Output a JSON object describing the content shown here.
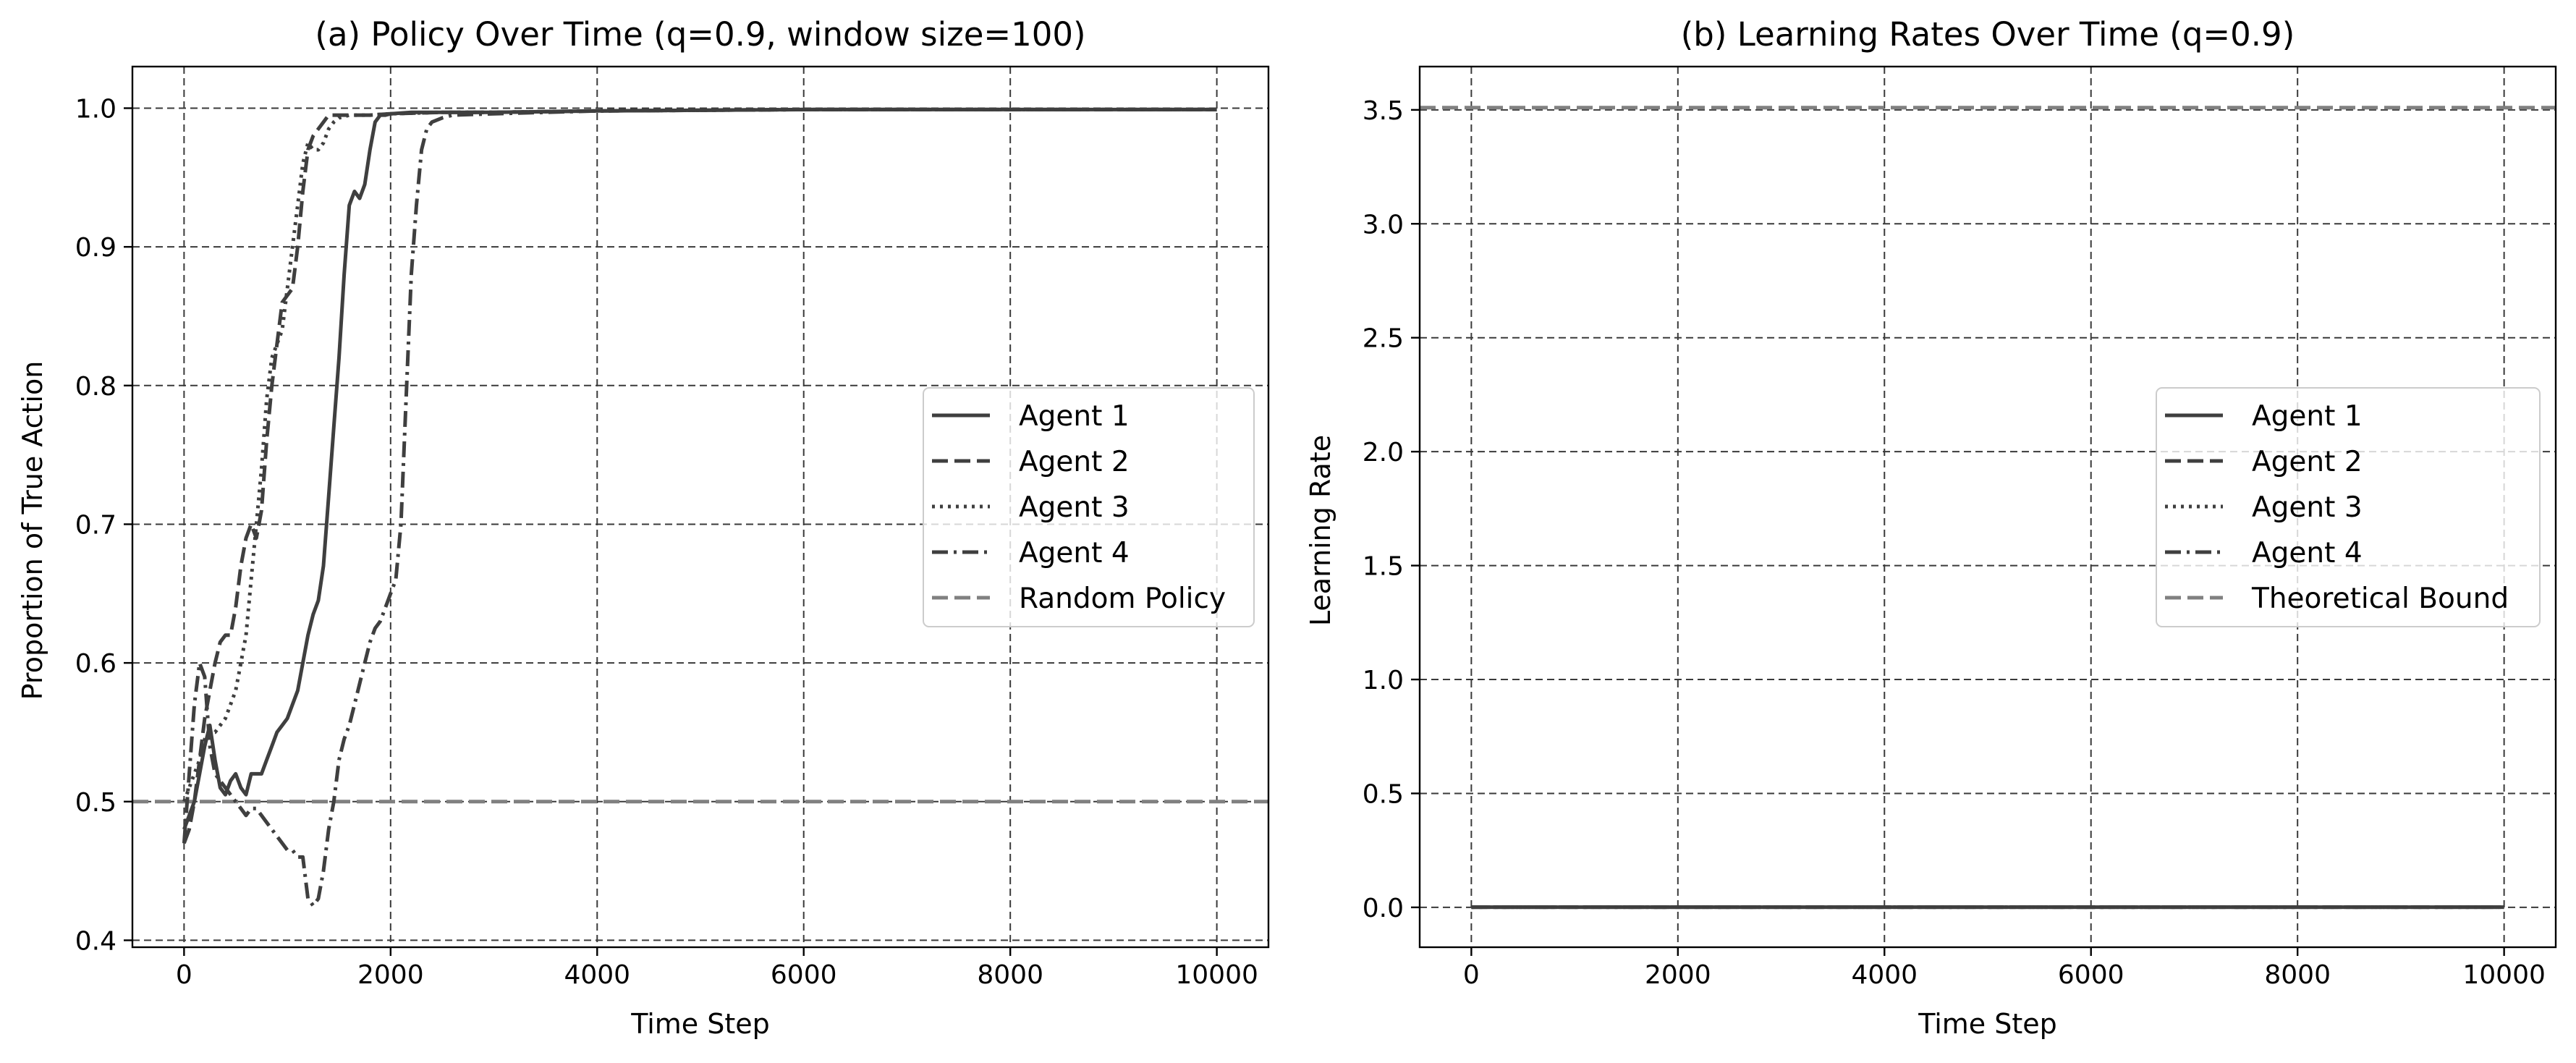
{
  "chart_data": [
    {
      "type": "line",
      "title": "(a) Policy Over Time (q=0.9, window size=100)",
      "xlabel": "Time Step",
      "ylabel": "Proportion of True Action",
      "xlim": [
        -500,
        10500
      ],
      "ylim": [
        0.395,
        1.03
      ],
      "xticks": [
        0,
        2000,
        4000,
        6000,
        8000,
        10000
      ],
      "yticks": [
        0.4,
        0.5,
        0.6,
        0.7,
        0.8,
        0.9,
        1.0
      ],
      "xtick_labels": [
        "0",
        "2000",
        "4000",
        "6000",
        "8000",
        "10000"
      ],
      "ytick_labels": [
        "0.4",
        "0.5",
        "0.6",
        "0.7",
        "0.8",
        "0.9",
        "1.0"
      ],
      "grid": true,
      "legend_position": "center-right",
      "series": [
        {
          "name": "Agent 1",
          "style": "solid",
          "color": "#3f3f3f",
          "x": [
            0,
            50,
            100,
            150,
            200,
            250,
            300,
            350,
            400,
            450,
            500,
            550,
            600,
            650,
            700,
            750,
            800,
            850,
            900,
            950,
            1000,
            1050,
            1100,
            1150,
            1200,
            1250,
            1300,
            1350,
            1400,
            1450,
            1500,
            1550,
            1600,
            1650,
            1700,
            1750,
            1800,
            1850,
            1900,
            1950,
            2000,
            2200,
            2500,
            3000,
            4000,
            6000,
            8000,
            10000
          ],
          "y": [
            0.48,
            0.49,
            0.5,
            0.52,
            0.54,
            0.555,
            0.53,
            0.51,
            0.505,
            0.515,
            0.52,
            0.51,
            0.505,
            0.52,
            0.52,
            0.52,
            0.53,
            0.54,
            0.55,
            0.555,
            0.56,
            0.57,
            0.58,
            0.6,
            0.62,
            0.635,
            0.645,
            0.67,
            0.72,
            0.77,
            0.82,
            0.88,
            0.93,
            0.94,
            0.935,
            0.945,
            0.97,
            0.99,
            0.995,
            0.995,
            0.996,
            0.997,
            0.997,
            0.997,
            0.998,
            0.999,
            0.999,
            0.999
          ]
        },
        {
          "name": "Agent 2",
          "style": "dashed",
          "color": "#3f3f3f",
          "x": [
            0,
            50,
            100,
            150,
            200,
            250,
            300,
            350,
            400,
            450,
            500,
            550,
            600,
            650,
            700,
            750,
            800,
            850,
            900,
            950,
            1000,
            1050,
            1100,
            1150,
            1200,
            1250,
            1300,
            1350,
            1400,
            1450,
            1500,
            1600,
            1800,
            2000,
            2500,
            3000,
            4000,
            6000,
            8000,
            10000
          ],
          "y": [
            0.47,
            0.48,
            0.5,
            0.53,
            0.56,
            0.58,
            0.6,
            0.615,
            0.62,
            0.62,
            0.64,
            0.67,
            0.69,
            0.7,
            0.69,
            0.71,
            0.76,
            0.8,
            0.83,
            0.86,
            0.865,
            0.87,
            0.9,
            0.94,
            0.97,
            0.98,
            0.985,
            0.99,
            0.995,
            0.995,
            0.995,
            0.995,
            0.995,
            0.996,
            0.997,
            0.997,
            0.998,
            0.999,
            0.999,
            0.999
          ]
        },
        {
          "name": "Agent 3",
          "style": "dotted",
          "color": "#3f3f3f",
          "x": [
            0,
            50,
            100,
            150,
            200,
            250,
            300,
            350,
            400,
            450,
            500,
            550,
            600,
            650,
            700,
            750,
            800,
            850,
            900,
            950,
            1000,
            1050,
            1100,
            1150,
            1200,
            1250,
            1300,
            1350,
            1400,
            1450,
            1500,
            1600,
            1800,
            2000,
            2500,
            3000,
            4000,
            6000,
            8000,
            10000
          ],
          "y": [
            0.5,
            0.51,
            0.52,
            0.53,
            0.545,
            0.55,
            0.55,
            0.555,
            0.56,
            0.57,
            0.58,
            0.6,
            0.62,
            0.66,
            0.7,
            0.74,
            0.79,
            0.82,
            0.83,
            0.84,
            0.87,
            0.9,
            0.93,
            0.96,
            0.975,
            0.97,
            0.97,
            0.975,
            0.985,
            0.99,
            0.993,
            0.995,
            0.995,
            0.996,
            0.997,
            0.997,
            0.998,
            0.999,
            0.999,
            0.999
          ]
        },
        {
          "name": "Agent 4",
          "style": "dashdot",
          "color": "#3f3f3f",
          "x": [
            0,
            50,
            100,
            150,
            200,
            250,
            300,
            350,
            400,
            450,
            500,
            550,
            600,
            650,
            700,
            750,
            800,
            850,
            900,
            950,
            1000,
            1050,
            1100,
            1150,
            1200,
            1250,
            1300,
            1350,
            1400,
            1450,
            1500,
            1550,
            1600,
            1650,
            1700,
            1750,
            1800,
            1850,
            1900,
            1950,
            2000,
            2050,
            2100,
            2150,
            2200,
            2250,
            2300,
            2350,
            2400,
            2500,
            2600,
            3000,
            4000,
            6000,
            8000,
            10000
          ],
          "y": [
            0.47,
            0.52,
            0.57,
            0.6,
            0.59,
            0.54,
            0.52,
            0.515,
            0.51,
            0.505,
            0.5,
            0.495,
            0.49,
            0.495,
            0.495,
            0.49,
            0.485,
            0.48,
            0.475,
            0.47,
            0.465,
            0.465,
            0.46,
            0.46,
            0.43,
            0.425,
            0.43,
            0.45,
            0.48,
            0.5,
            0.53,
            0.545,
            0.555,
            0.57,
            0.585,
            0.6,
            0.615,
            0.625,
            0.63,
            0.64,
            0.65,
            0.66,
            0.7,
            0.79,
            0.88,
            0.93,
            0.97,
            0.985,
            0.99,
            0.993,
            0.995,
            0.996,
            0.998,
            0.999,
            0.999,
            0.999
          ]
        },
        {
          "name": "Random Policy",
          "style": "dashed",
          "color": "#808080",
          "x": [
            -500,
            10500
          ],
          "y": [
            0.5,
            0.5
          ]
        }
      ]
    },
    {
      "type": "line",
      "title": "(b) Learning Rates Over Time (q=0.9)",
      "xlabel": "Time Step",
      "ylabel": "Learning Rate",
      "xlim": [
        -500,
        10500
      ],
      "ylim": [
        -0.175,
        3.69
      ],
      "xticks": [
        0,
        2000,
        4000,
        6000,
        8000,
        10000
      ],
      "yticks": [
        0.0,
        0.5,
        1.0,
        1.5,
        2.0,
        2.5,
        3.0,
        3.5
      ],
      "xtick_labels": [
        "0",
        "2000",
        "4000",
        "6000",
        "8000",
        "10000"
      ],
      "ytick_labels": [
        "0.0",
        "0.5",
        "1.0",
        "1.5",
        "2.0",
        "2.5",
        "3.0",
        "3.5"
      ],
      "grid": true,
      "legend_position": "center-right",
      "series": [
        {
          "name": "Agent 1",
          "style": "solid",
          "color": "#3f3f3f",
          "x": [
            0,
            10000
          ],
          "y": [
            0.001,
            0.001
          ]
        },
        {
          "name": "Agent 2",
          "style": "dashed",
          "color": "#3f3f3f",
          "x": [
            0,
            10000
          ],
          "y": [
            0.001,
            0.001
          ]
        },
        {
          "name": "Agent 3",
          "style": "dotted",
          "color": "#3f3f3f",
          "x": [
            0,
            10000
          ],
          "y": [
            0.001,
            0.001
          ]
        },
        {
          "name": "Agent 4",
          "style": "dashdot",
          "color": "#3f3f3f",
          "x": [
            0,
            10000
          ],
          "y": [
            0.001,
            0.001
          ]
        },
        {
          "name": "Theoretical Bound",
          "style": "dashed",
          "color": "#808080",
          "x": [
            -500,
            10500
          ],
          "y": [
            3.51,
            3.51
          ]
        }
      ]
    }
  ]
}
